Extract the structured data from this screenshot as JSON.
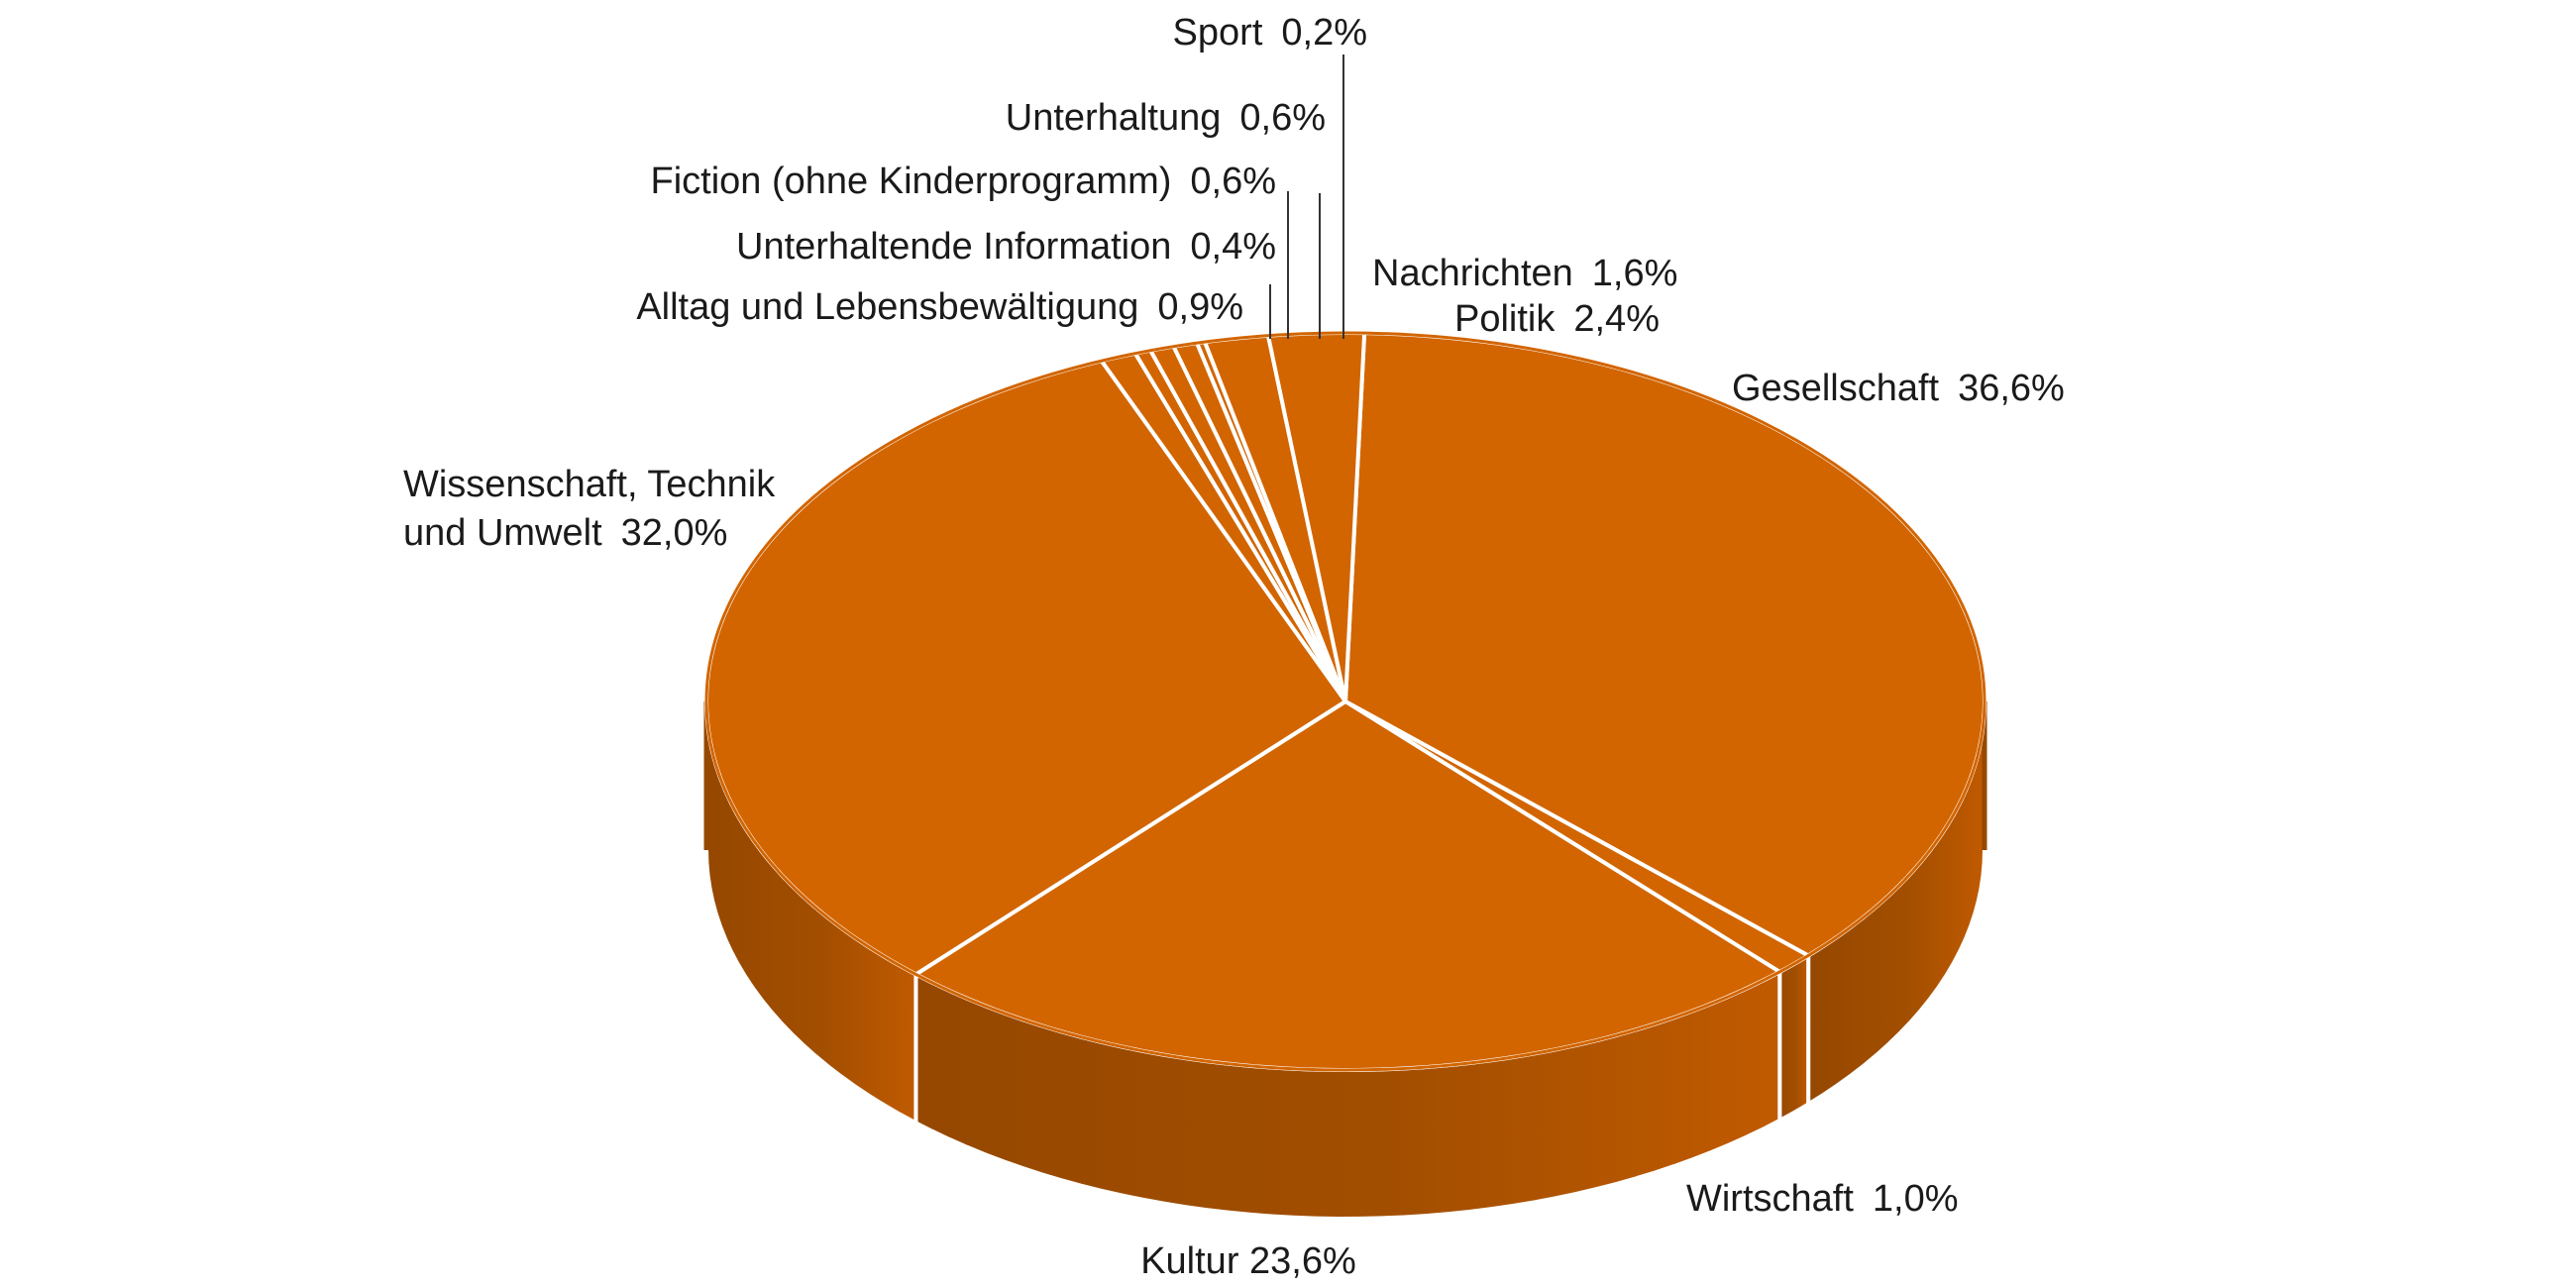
{
  "chart_data": {
    "type": "pie",
    "title": "",
    "slices": [
      {
        "label": "Gesellschaft",
        "value_text": "36,6%",
        "value": 36.6
      },
      {
        "label": "Wirtschaft",
        "value_text": "1,0%",
        "value": 1.0
      },
      {
        "label": "Kultur",
        "value_text": "23,6%",
        "value": 23.6
      },
      {
        "label_lines": [
          "Wissenschaft, Technik",
          "und Umwelt"
        ],
        "label": "Wissenschaft, Technik und Umwelt",
        "value_text": "32,0%",
        "value": 32.0
      },
      {
        "label": "Alltag und Lebensbewältigung",
        "value_text": "0,9%",
        "value": 0.9
      },
      {
        "label": "Unterhaltende Information",
        "value_text": "0,4%",
        "value": 0.4
      },
      {
        "label": "Fiction (ohne Kinderprogramm)",
        "value_text": "0,6%",
        "value": 0.6
      },
      {
        "label": "Unterhaltung",
        "value_text": "0,6%",
        "value": 0.6
      },
      {
        "label": "Sport",
        "value_text": "0,2%",
        "value": 0.2
      },
      {
        "label": "Nachrichten",
        "value_text": "1,6%",
        "value": 1.6
      },
      {
        "label": "Politik",
        "value_text": "2,4%",
        "value": 2.4
      }
    ],
    "colors": {
      "top": "#d26500",
      "side_light": "#c05a00",
      "side_dark": "#964800",
      "separator": "#ffffff"
    }
  }
}
